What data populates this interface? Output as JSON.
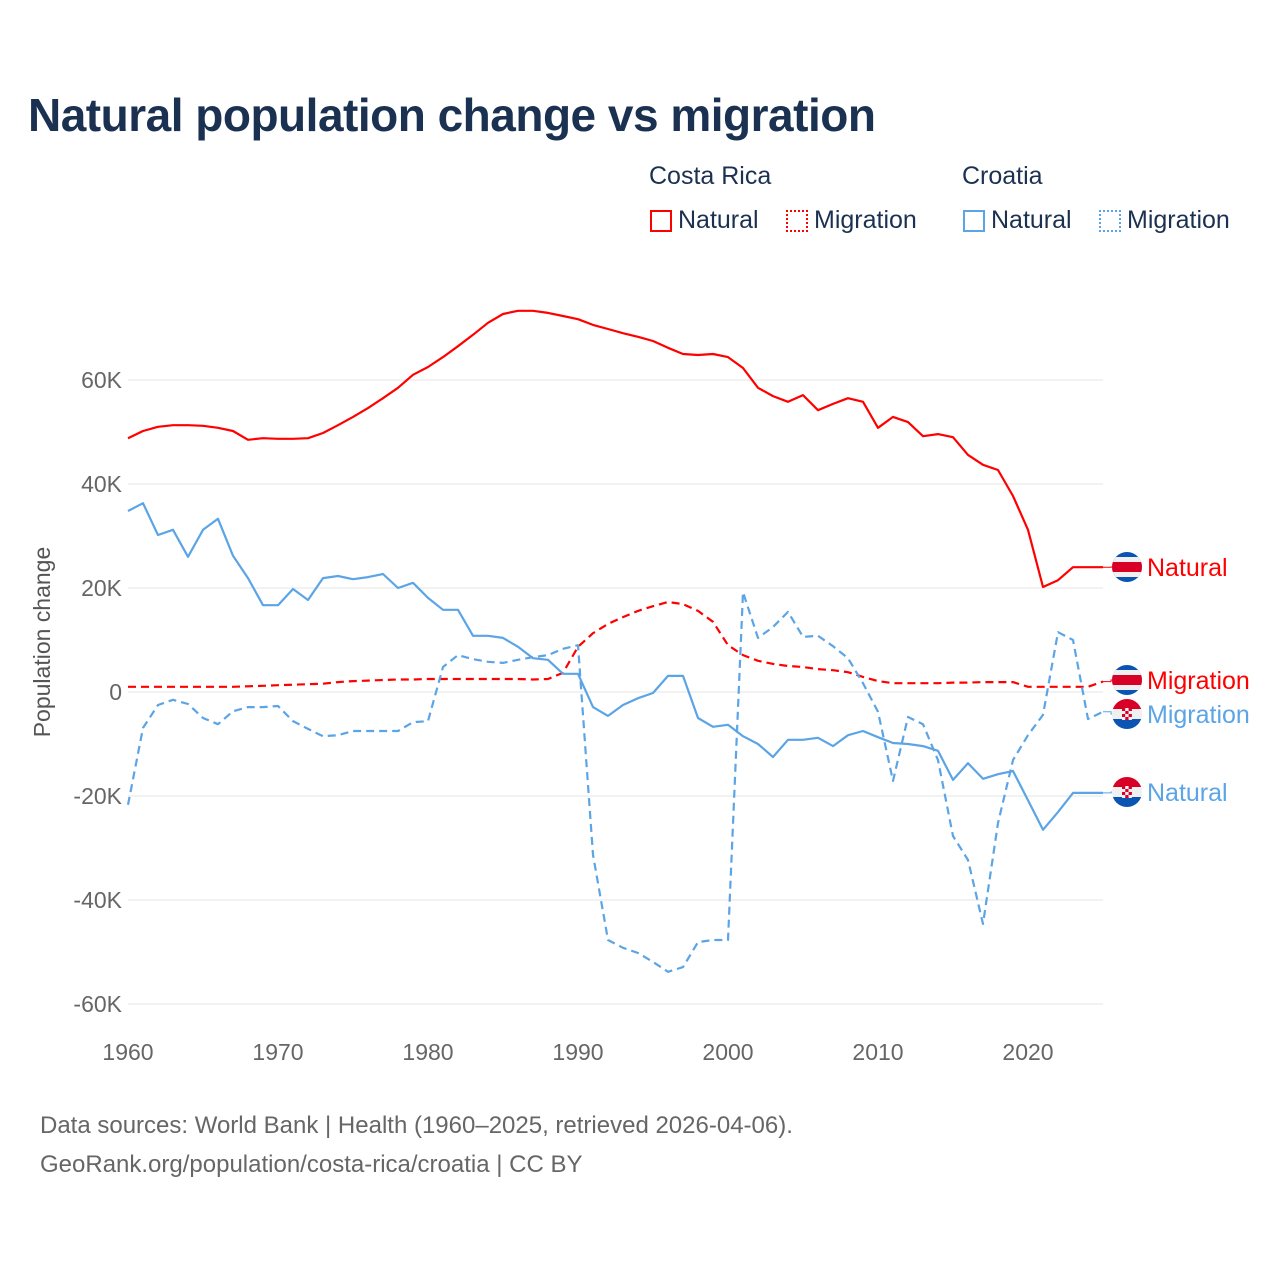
{
  "title": "Natural population change vs migration",
  "legend": {
    "groups": [
      {
        "country": "Costa Rica",
        "items": [
          {
            "label": "Natural",
            "style": "solid"
          },
          {
            "label": "Migration",
            "style": "dotted"
          }
        ],
        "color": "#ff0000"
      },
      {
        "country": "Croatia",
        "items": [
          {
            "label": "Natural",
            "style": "solid"
          },
          {
            "label": "Migration",
            "style": "dotted"
          }
        ],
        "color": "#5ba4e6"
      }
    ]
  },
  "footer": {
    "line1": "Data sources: World Bank | Health (1960–2025, retrieved 2026-04-06).",
    "line2": "GeoRank.org/population/costa-rica/croatia | CC BY"
  },
  "chart_data": {
    "type": "line",
    "title": "Natural population change vs migration",
    "xlabel": "",
    "ylabel": "Population change",
    "xlim": [
      1960,
      2025
    ],
    "ylim": [
      -60000,
      70000
    ],
    "grid": true,
    "x_ticks": [
      1960,
      1970,
      1980,
      1990,
      2000,
      2010,
      2020
    ],
    "x_tick_labels": [
      "1960",
      "1970",
      "1980",
      "1990",
      "2000",
      "2010",
      "2020"
    ],
    "y_ticks": [
      60000,
      40000,
      20000,
      0,
      -20000,
      -40000,
      -60000
    ],
    "y_tick_labels": [
      "60K",
      "40K",
      "20K",
      "0",
      "-20K",
      "-40K",
      "-60K"
    ],
    "x_start": 1960,
    "series": [
      {
        "name": "Costa Rica Natural",
        "end_label": "Natural",
        "country": "Costa Rica",
        "color": "#ff0000",
        "dash": "solid",
        "values": [
          48800,
          50200,
          51000,
          51300,
          51300,
          51200,
          50800,
          50200,
          48500,
          48800,
          48700,
          48700,
          48800,
          49800,
          51300,
          52900,
          54600,
          56500,
          58500,
          61000,
          62500,
          64400,
          66500,
          68700,
          71000,
          72700,
          73300,
          73300,
          72900,
          72300,
          71700,
          70600,
          69800,
          69000,
          68300,
          67500,
          66200,
          65000,
          64800,
          65000,
          64400,
          62300,
          58500,
          56900,
          55800,
          57100,
          54200,
          55400,
          56500,
          55800,
          50800,
          52900,
          51900,
          49200,
          49600,
          49000,
          45600,
          43700,
          42700,
          37700,
          31200,
          20200,
          21500,
          24000,
          24000,
          24000
        ]
      },
      {
        "name": "Costa Rica Migration",
        "end_label": "Migration",
        "country": "Costa Rica",
        "color": "#ff0000",
        "dash": "dashed",
        "values": [
          1000,
          1000,
          1000,
          1000,
          1000,
          1000,
          1000,
          1000,
          1100,
          1200,
          1300,
          1400,
          1500,
          1600,
          1900,
          2100,
          2200,
          2300,
          2400,
          2400,
          2500,
          2500,
          2500,
          2500,
          2500,
          2500,
          2500,
          2400,
          2500,
          3700,
          8700,
          11300,
          13100,
          14400,
          15600,
          16500,
          17300,
          16900,
          15600,
          13500,
          9000,
          7100,
          6000,
          5400,
          5000,
          4800,
          4400,
          4200,
          3800,
          2900,
          2100,
          1700,
          1700,
          1700,
          1700,
          1800,
          1800,
          1900,
          1900,
          1900,
          1000,
          1000,
          1000,
          1000,
          1000,
          2000
        ]
      },
      {
        "name": "Croatia Migration",
        "end_label": "Migration",
        "country": "Croatia",
        "color": "#5ba4e6",
        "dash": "dashed",
        "values": [
          -21700,
          -6900,
          -2500,
          -1500,
          -2300,
          -5000,
          -6200,
          -3700,
          -2900,
          -2900,
          -2700,
          -5600,
          -7100,
          -8500,
          -8300,
          -7500,
          -7500,
          -7500,
          -7500,
          -5800,
          -5600,
          4800,
          7100,
          6300,
          5800,
          5600,
          6200,
          6700,
          7100,
          8300,
          9000,
          -31300,
          -47700,
          -49200,
          -50200,
          -51900,
          -53800,
          -52900,
          -48100,
          -47700,
          -47700,
          19200,
          10400,
          12500,
          15400,
          10600,
          10800,
          8800,
          6500,
          1700,
          -3800,
          -17100,
          -4800,
          -6200,
          -13100,
          -27700,
          -32300,
          -44600,
          -25200,
          -13100,
          -8300,
          -4400,
          11500,
          10000,
          -5200,
          -3800
        ]
      },
      {
        "name": "Croatia Natural",
        "end_label": "Natural",
        "country": "Croatia",
        "color": "#5ba4e6",
        "dash": "solid",
        "values": [
          34800,
          36300,
          30200,
          31200,
          26000,
          31200,
          33300,
          26200,
          21900,
          16700,
          16700,
          19800,
          17700,
          21900,
          22300,
          21700,
          22100,
          22700,
          20000,
          21000,
          18100,
          15800,
          15800,
          10800,
          10800,
          10400,
          8700,
          6500,
          6200,
          3500,
          3500,
          -2900,
          -4600,
          -2500,
          -1200,
          -200,
          3100,
          3100,
          -5000,
          -6700,
          -6300,
          -8500,
          -10000,
          -12500,
          -9200,
          -9200,
          -8800,
          -10400,
          -8300,
          -7500,
          -8700,
          -9800,
          -10000,
          -10400,
          -11300,
          -16900,
          -13700,
          -16700,
          -15800,
          -15200,
          -20800,
          -26500,
          -23100,
          -19400,
          -19400,
          -19400
        ]
      }
    ]
  }
}
